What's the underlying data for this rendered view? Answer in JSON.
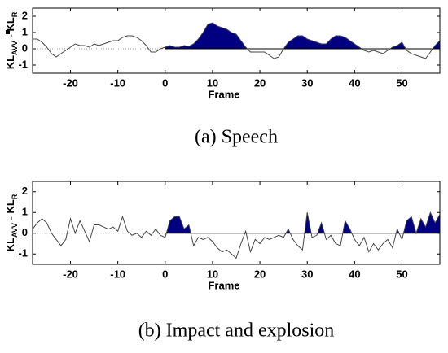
{
  "chart_data": [
    {
      "type": "line",
      "caption": "(a) Speech",
      "xlabel": "Frame",
      "ylabel": [
        "KL",
        "AVV",
        " - KL",
        "R"
      ],
      "xlim": [
        -28,
        58
      ],
      "ylim": [
        -1.5,
        2.5
      ],
      "xticks": [
        -20,
        -10,
        0,
        10,
        20,
        30,
        40,
        50
      ],
      "yticks": [
        -1,
        0,
        1,
        2
      ],
      "fill_after": 0,
      "line_color": "#444444",
      "fill_color": "#000080",
      "x": [
        -28,
        -27,
        -26,
        -25,
        -24,
        -23,
        -22,
        -21,
        -20,
        -19,
        -18,
        -17,
        -16,
        -15,
        -14,
        -13,
        -12,
        -11,
        -10,
        -9,
        -8,
        -7,
        -6,
        -5,
        -4,
        -3,
        -2,
        -1,
        0,
        1,
        2,
        3,
        4,
        5,
        6,
        7,
        8,
        9,
        10,
        11,
        12,
        13,
        14,
        15,
        16,
        17,
        18,
        19,
        20,
        21,
        22,
        23,
        24,
        25,
        26,
        27,
        28,
        29,
        30,
        31,
        32,
        33,
        34,
        35,
        36,
        37,
        38,
        39,
        40,
        41,
        42,
        43,
        44,
        45,
        46,
        47,
        48,
        49,
        50,
        51,
        52,
        53,
        54,
        55,
        56,
        57,
        58
      ],
      "values": [
        0.6,
        0.6,
        0.4,
        0.1,
        -0.3,
        -0.5,
        -0.3,
        -0.1,
        0.1,
        0.3,
        0.2,
        0.2,
        0.1,
        0.3,
        0.2,
        0.3,
        0.4,
        0.5,
        0.5,
        0.7,
        0.8,
        0.8,
        0.7,
        0.5,
        0.2,
        -0.2,
        -0.2,
        0,
        0.1,
        0.2,
        0.1,
        0.1,
        0.2,
        0.15,
        0.3,
        0.6,
        1.0,
        1.5,
        1.6,
        1.4,
        1.3,
        1.2,
        1.0,
        0.9,
        0.5,
        0.1,
        -0.2,
        -0.2,
        -0.2,
        -0.2,
        -0.4,
        -0.6,
        -0.5,
        0,
        0.4,
        0.6,
        0.8,
        0.8,
        0.6,
        0.5,
        0.4,
        0.3,
        0.3,
        0.6,
        0.8,
        0.8,
        0.7,
        0.5,
        0.3,
        0.1,
        -0.1,
        -0.2,
        -0.1,
        -0.2,
        -0.3,
        -0.1,
        0.1,
        0.2,
        0.4,
        -0.1,
        -0.3,
        -0.4,
        -0.5,
        -0.6,
        -0.2,
        0.2,
        0.5
      ]
    },
    {
      "type": "line",
      "caption": "(b) Impact and explosion",
      "xlabel": "Frame",
      "ylabel": [
        "KL",
        "AVV",
        " - KL",
        "R"
      ],
      "xlim": [
        -28,
        58
      ],
      "ylim": [
        -1.5,
        2.5
      ],
      "xticks": [
        -20,
        -10,
        0,
        10,
        20,
        30,
        40,
        50
      ],
      "yticks": [
        -1,
        0,
        1,
        2
      ],
      "fill_after": 0,
      "line_color": "#444444",
      "fill_color": "#000080",
      "x": [
        -28,
        -27,
        -26,
        -25,
        -24,
        -23,
        -22,
        -21,
        -20,
        -19,
        -18,
        -17,
        -16,
        -15,
        -14,
        -13,
        -12,
        -11,
        -10,
        -9,
        -8,
        -7,
        -6,
        -5,
        -4,
        -3,
        -2,
        -1,
        0,
        1,
        2,
        3,
        4,
        5,
        6,
        7,
        8,
        9,
        10,
        11,
        12,
        13,
        14,
        15,
        16,
        17,
        18,
        19,
        20,
        21,
        22,
        23,
        24,
        25,
        26,
        27,
        28,
        29,
        30,
        31,
        32,
        33,
        34,
        35,
        36,
        37,
        38,
        39,
        40,
        41,
        42,
        43,
        44,
        45,
        46,
        47,
        48,
        49,
        50,
        51,
        52,
        53,
        54,
        55,
        56,
        57,
        58
      ],
      "values": [
        0.2,
        0.5,
        0.7,
        0.5,
        0,
        -0.3,
        -0.6,
        -0.3,
        0.7,
        0,
        0.6,
        0.1,
        -0.4,
        0.4,
        0.4,
        0.3,
        0.2,
        0.3,
        0.1,
        0.8,
        0.1,
        -0.1,
        0,
        -0.2,
        0.1,
        -0.1,
        0.2,
        -0.1,
        -0.2,
        0.6,
        0.8,
        0.8,
        0.2,
        0.4,
        -0.6,
        -0.2,
        -0.3,
        -0.2,
        -0.4,
        -0.7,
        -0.9,
        -0.8,
        -1.0,
        -1.2,
        -0.5,
        0.1,
        -0.9,
        -0.3,
        -0.5,
        -0.2,
        -0.3,
        -0.2,
        -0.1,
        -0.2,
        0.2,
        -0.3,
        -0.6,
        -0.8,
        1.0,
        -0.2,
        -0.1,
        0.5,
        -0.3,
        -0.1,
        -0.5,
        -0.6,
        0.6,
        0.2,
        -0.3,
        -0.6,
        -0.2,
        -0.9,
        -0.5,
        -0.8,
        -0.5,
        -0.3,
        -0.7,
        0.2,
        -0.3,
        0.6,
        0.8,
        0,
        0.7,
        0.3,
        1.0,
        0.5,
        0.9
      ]
    }
  ]
}
